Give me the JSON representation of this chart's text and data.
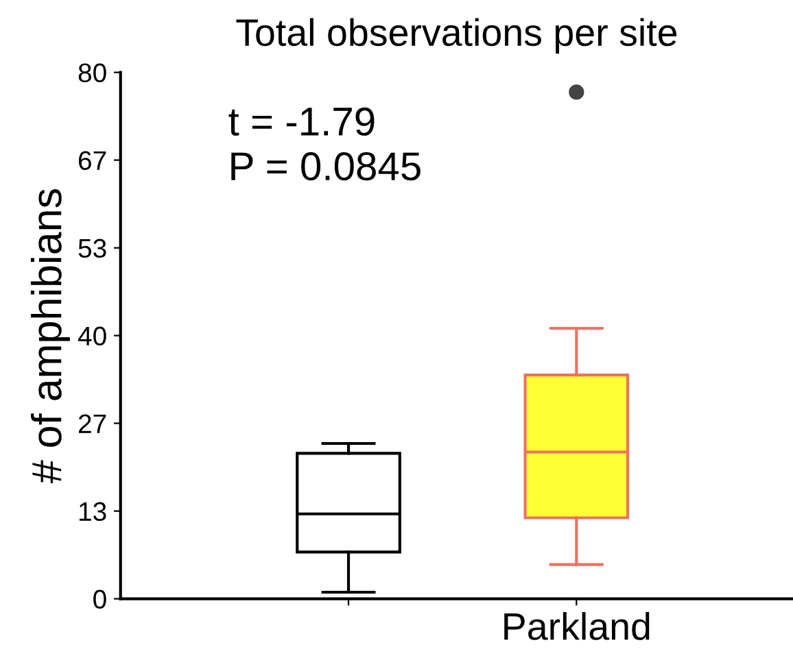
{
  "chart_data": {
    "type": "box",
    "title": "Total observations per site",
    "ylabel": "# of amphibians",
    "categories": [
      null,
      "Parkland"
    ],
    "boxes": [
      {
        "low": 1.0,
        "q1": 7.1,
        "median": 12.9,
        "q3": 22.1,
        "high": 23.6
      },
      {
        "low": 5.2,
        "q1": 12.3,
        "median": 22.3,
        "q3": 34.0,
        "high": 41.1,
        "outliers": [
          77
        ]
      }
    ],
    "colors": [
      "#ffffff",
      "#ffff33"
    ],
    "ylim": [
      0,
      80
    ],
    "yticks": [
      0,
      {
        "value": 13.33,
        "label": "13"
      },
      {
        "value": 26.67,
        "label": "27"
      },
      40,
      {
        "value": 53.33,
        "label": "53"
      },
      {
        "value": 66.67,
        "label": "67"
      },
      80
    ],
    "annotations": [
      "t = -1.79",
      "P = 0.0845"
    ],
    "grid": false,
    "legend": false
  }
}
